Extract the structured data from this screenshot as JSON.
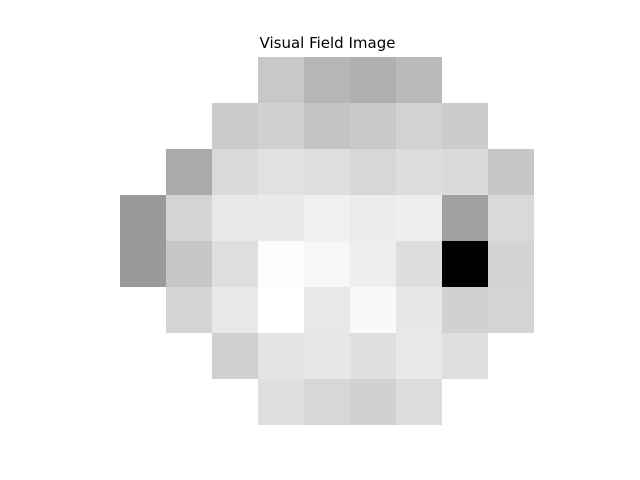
{
  "chart_data": {
    "type": "heatmap",
    "title": "Visual Field Image",
    "colormap": "grayscale",
    "axes_visible": false,
    "grid": false,
    "legend": "none",
    "rows": 8,
    "cols": 9,
    "values": [
      [
        null,
        null,
        null,
        200,
        182,
        175,
        186,
        null,
        null
      ],
      [
        null,
        null,
        203,
        209,
        196,
        201,
        210,
        204,
        null
      ],
      [
        null,
        170,
        218,
        226,
        222,
        215,
        221,
        218,
        199
      ],
      [
        154,
        212,
        232,
        234,
        240,
        236,
        238,
        160,
        217
      ],
      [
        154,
        198,
        223,
        252,
        247,
        238,
        221,
        0,
        211
      ],
      [
        null,
        212,
        232,
        255,
        232,
        249,
        231,
        209,
        212
      ],
      [
        null,
        null,
        208,
        228,
        231,
        224,
        233,
        223,
        null
      ],
      [
        null,
        null,
        null,
        223,
        215,
        209,
        221,
        null,
        null
      ]
    ]
  }
}
